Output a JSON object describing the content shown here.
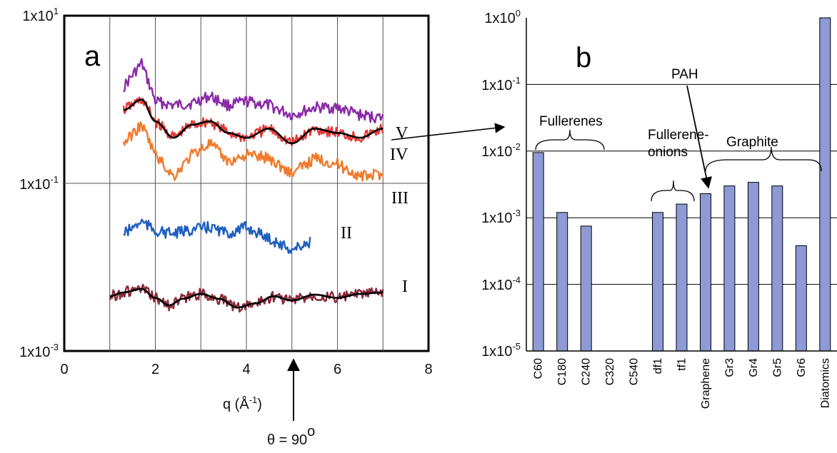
{
  "panel_a": {
    "label": "a",
    "y_ticks": [
      "1x10",
      "1x10",
      "1x10"
    ],
    "y_exps": [
      "1",
      "-1",
      "-3"
    ],
    "x_ticks": [
      "0",
      "2",
      "4",
      "6",
      "8"
    ],
    "xlabel_main": "q (Å",
    "xlabel_exp": "-1",
    "xlabel_close": ")",
    "theta_label": "θ = 90",
    "theta_degree": "o",
    "curve_labels": [
      "V",
      "IV",
      "III",
      "II",
      "I"
    ]
  },
  "panel_b": {
    "label": "b",
    "y_ticks": [
      "1x10",
      "1x10",
      "1x10",
      "1x10",
      "1x10",
      "1x10"
    ],
    "y_exps": [
      "0",
      "-1",
      "-2",
      "-3",
      "-4",
      "-5"
    ],
    "groups": [
      "Fullerenes",
      "Fullerene-",
      "onions",
      "Graphite",
      "PAH"
    ]
  },
  "colors": {
    "bar": "#8d9ad6",
    "V": "#8a2aa8",
    "IV": "#e53935",
    "III": "#f07a2a",
    "II": "#1f5fbf",
    "I": "#8b2a3a",
    "fit": "#000000"
  },
  "chart_data": [
    {
      "type": "line",
      "xlabel": "q (Å-1)",
      "xlim": [
        0,
        8
      ],
      "ylim": [
        0.001,
        10
      ],
      "y_scale": "log",
      "grid": true,
      "series": [
        {
          "name": "V",
          "x": [
            1.3,
            1.7,
            2.0,
            2.4,
            2.8,
            3.2,
            3.6,
            4.0,
            4.5,
            5.0,
            5.5,
            6.0,
            6.5,
            7.0
          ],
          "y": [
            1.4,
            2.7,
            0.95,
            0.85,
            0.9,
            1.1,
            0.85,
            0.95,
            0.85,
            0.65,
            0.8,
            0.8,
            0.65,
            0.6
          ]
        },
        {
          "name": "IV",
          "x": [
            1.3,
            1.7,
            2.0,
            2.4,
            2.8,
            3.2,
            3.6,
            4.0,
            4.5,
            5.0,
            5.5,
            6.0,
            6.5,
            7.0
          ],
          "y": [
            0.75,
            1.0,
            0.55,
            0.35,
            0.5,
            0.55,
            0.4,
            0.35,
            0.45,
            0.3,
            0.45,
            0.4,
            0.35,
            0.45
          ]
        },
        {
          "name": "III",
          "x": [
            1.3,
            1.7,
            2.0,
            2.4,
            2.8,
            3.2,
            3.6,
            4.0,
            4.5,
            5.0,
            5.5,
            6.0,
            6.5,
            7.0
          ],
          "y": [
            0.3,
            0.5,
            0.22,
            0.12,
            0.22,
            0.3,
            0.18,
            0.22,
            0.2,
            0.13,
            0.2,
            0.17,
            0.12,
            0.13
          ]
        },
        {
          "name": "II",
          "x": [
            1.3,
            1.7,
            2.0,
            2.4,
            2.8,
            3.2,
            3.6,
            4.0,
            4.5,
            5.0,
            5.4
          ],
          "y": [
            0.025,
            0.035,
            0.027,
            0.025,
            0.028,
            0.03,
            0.025,
            0.03,
            0.022,
            0.016,
            0.02
          ]
        },
        {
          "name": "I",
          "x": [
            1.0,
            1.3,
            1.7,
            2.0,
            2.3,
            2.6,
            3.0,
            3.4,
            3.8,
            4.2,
            4.6,
            5.0,
            5.5,
            6.0,
            6.5,
            7.0
          ],
          "y": [
            0.0045,
            0.005,
            0.0055,
            0.0043,
            0.0035,
            0.0042,
            0.0048,
            0.0042,
            0.0033,
            0.0037,
            0.0045,
            0.004,
            0.0047,
            0.0043,
            0.0048,
            0.005
          ]
        }
      ]
    },
    {
      "type": "bar",
      "categories": [
        "C60",
        "C180",
        "C240",
        "C320",
        "C540",
        "df1",
        "tf1",
        "Graphene",
        "Gr3",
        "Gr4",
        "Gr5",
        "Gr6",
        "Diatomics"
      ],
      "values": [
        0.0095,
        0.0012,
        0.00075,
        null,
        null,
        0.0012,
        0.0016,
        0.0023,
        0.003,
        0.0034,
        0.003,
        0.00038,
        1.0
      ],
      "ylim": [
        1e-05,
        1
      ],
      "y_scale": "log",
      "grid": true
    }
  ]
}
